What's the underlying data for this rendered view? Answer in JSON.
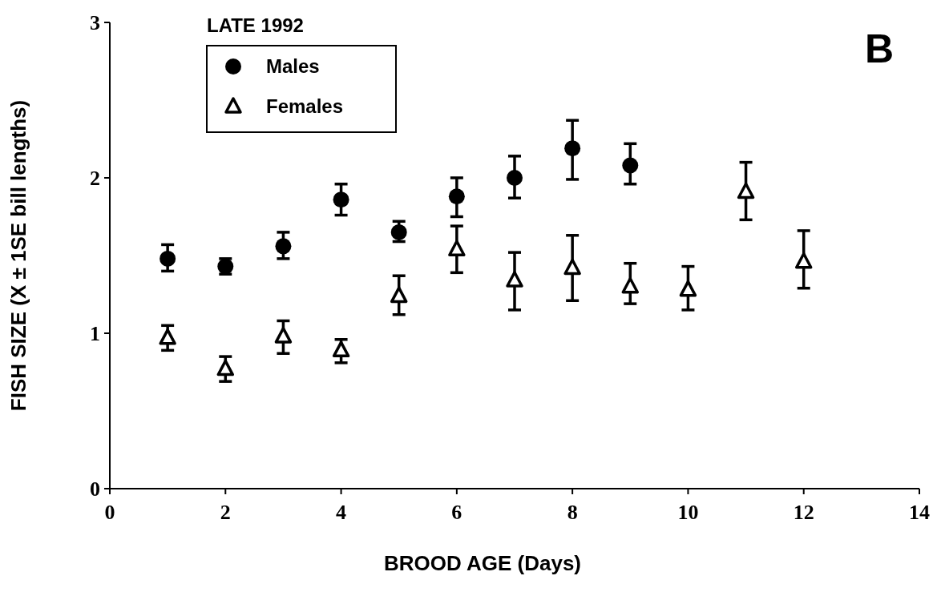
{
  "chart_data": {
    "type": "scatter",
    "xlabel": "BROOD AGE (Days)",
    "ylabel": "FISH SIZE (X ± 1SE bill lengths)",
    "legend_title": "LATE 1992",
    "legend": "top left",
    "annotations": [
      "B"
    ],
    "xlim": [
      0,
      14
    ],
    "xticks": [
      0,
      2,
      4,
      6,
      8,
      10,
      12,
      14
    ],
    "ylim": [
      0,
      3
    ],
    "yticks": [
      0,
      1,
      2,
      3
    ],
    "grid": false,
    "series": [
      {
        "name": "Males",
        "color": "#000000",
        "marker": "circle",
        "x": [
          1,
          2,
          3,
          4,
          5,
          6,
          7,
          8,
          9
        ],
        "values": [
          1.48,
          1.43,
          1.56,
          1.86,
          1.65,
          1.88,
          2.0,
          2.19,
          2.08
        ],
        "errors": [
          [
            1.4,
            1.57
          ],
          [
            1.38,
            1.48
          ],
          [
            1.48,
            1.65
          ],
          [
            1.76,
            1.96
          ],
          [
            1.59,
            1.72
          ],
          [
            1.75,
            2.0
          ],
          [
            1.87,
            2.14
          ],
          [
            1.99,
            2.37
          ],
          [
            1.96,
            2.22
          ]
        ]
      },
      {
        "name": "Females",
        "color": "#000000",
        "marker": "triangle",
        "x": [
          1,
          2,
          3,
          4,
          5,
          6,
          7,
          8,
          9,
          10,
          11,
          12
        ],
        "values": [
          0.97,
          0.77,
          0.98,
          0.89,
          1.24,
          1.54,
          1.34,
          1.42,
          1.3,
          1.28,
          1.91,
          1.46
        ],
        "errors": [
          [
            0.89,
            1.05
          ],
          [
            0.69,
            0.85
          ],
          [
            0.87,
            1.08
          ],
          [
            0.81,
            0.96
          ],
          [
            1.12,
            1.37
          ],
          [
            1.39,
            1.69
          ],
          [
            1.15,
            1.52
          ],
          [
            1.21,
            1.63
          ],
          [
            1.19,
            1.45
          ],
          [
            1.15,
            1.43
          ],
          [
            1.73,
            2.1
          ],
          [
            1.29,
            1.66
          ]
        ]
      }
    ]
  }
}
